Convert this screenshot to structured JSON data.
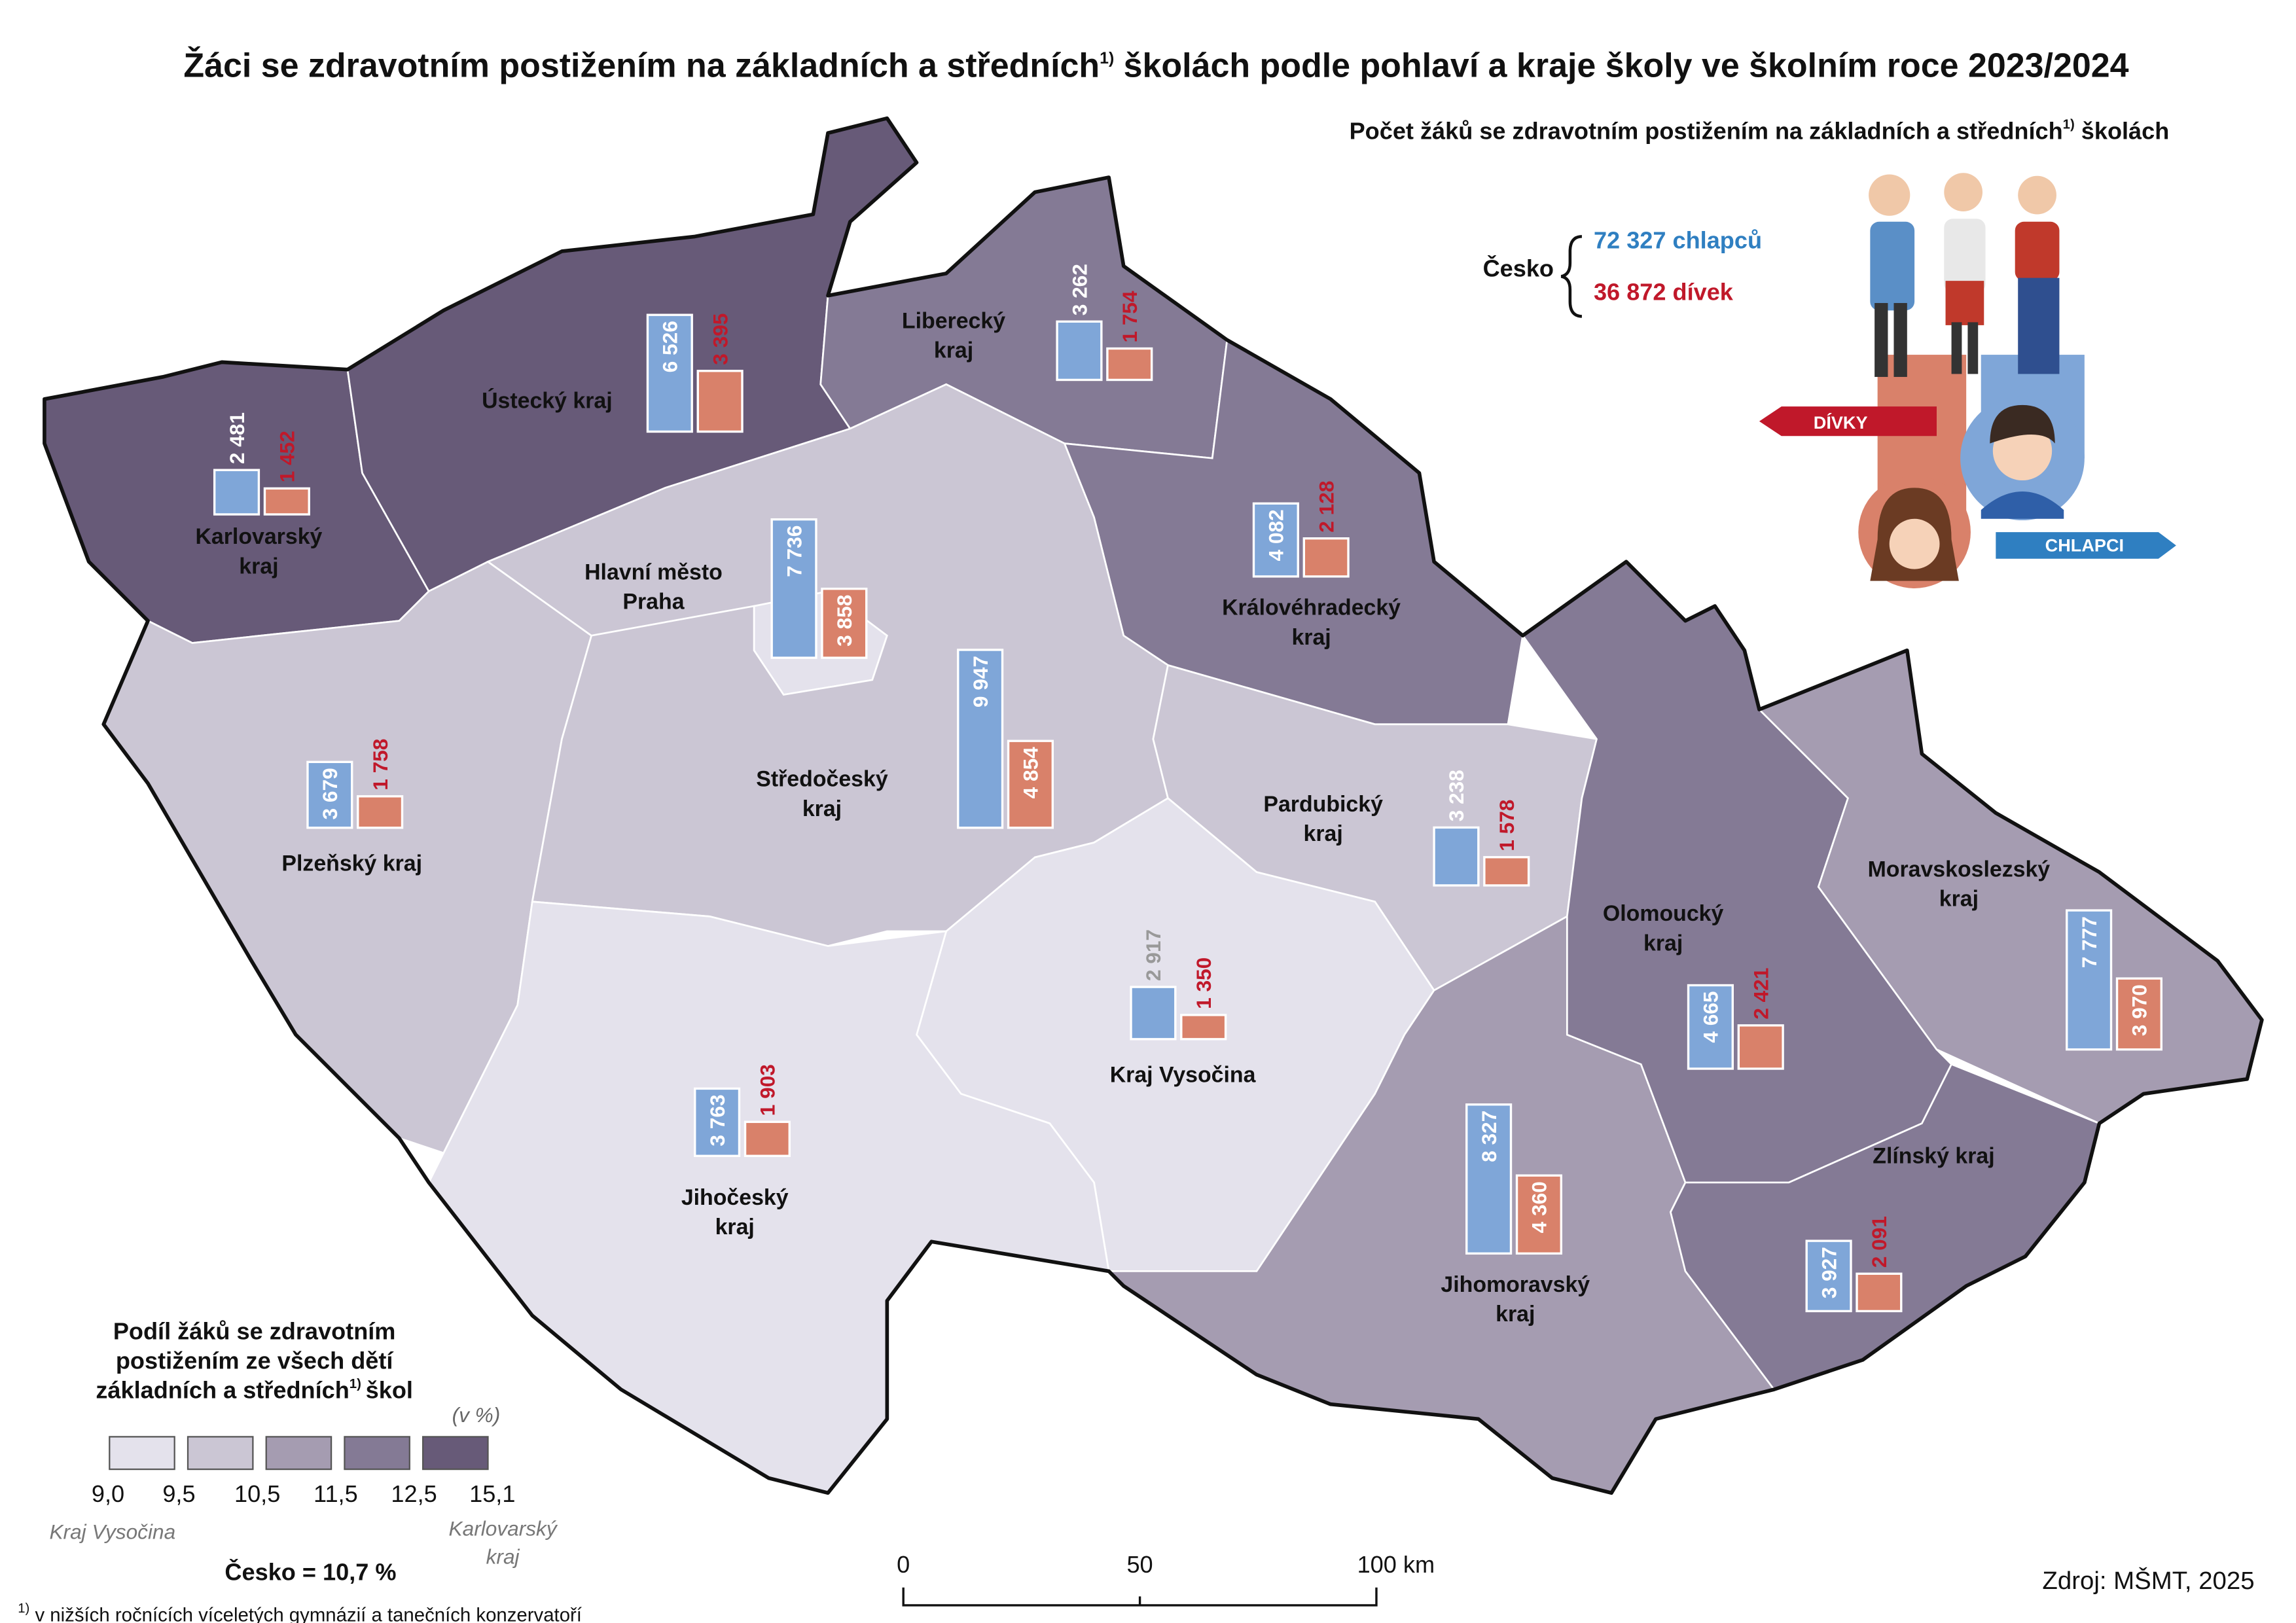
{
  "title": {
    "part1": "Žáci se zdravotním postižením na základních a středních",
    "sup": "1)",
    "part2": " školách podle pohlaví a kraje školy ve školním roce 2023/2024"
  },
  "infographic": {
    "title_part1": "Počet žáků se zdravotním postižením na základních a středních",
    "title_sup": "1)",
    "title_part2": " školách",
    "country": "Česko",
    "boys": {
      "value": 72327,
      "label": "72 327 chlapců",
      "color": "#2f7fc1"
    },
    "girls": {
      "value": 36872,
      "label": "36 872 dívek",
      "color": "#c0182a"
    },
    "girls_tag": "DÍVKY",
    "boys_tag": "CHLAPCI"
  },
  "bar_colors": {
    "boys": "#7fa6d8",
    "girls": "#d9816a",
    "girls_text": "#c0182a"
  },
  "regions": [
    {
      "name": [
        "Karlovarský",
        "kraj"
      ],
      "color": "#675a78",
      "boys": {
        "value": 2481,
        "label": "2 481"
      },
      "girls": {
        "value": 1452,
        "label": "1 452"
      }
    },
    {
      "name": [
        "Ústecký kraj"
      ],
      "color": "#675a78",
      "boys": {
        "value": 6526,
        "label": "6 526"
      },
      "girls": {
        "value": 3395,
        "label": "3 395"
      }
    },
    {
      "name": [
        "Liberecký",
        "kraj"
      ],
      "color": "#847a95",
      "boys": {
        "value": 3262,
        "label": "3 262"
      },
      "girls": {
        "value": 1754,
        "label": "1 754"
      }
    },
    {
      "name": [
        "Hlavní město",
        "Praha"
      ],
      "color": "#e4e2ec",
      "boys": {
        "value": 7736,
        "label": "7 736"
      },
      "girls": {
        "value": 3858,
        "label": "3 858"
      }
    },
    {
      "name": [
        "Královéhradecký",
        "kraj"
      ],
      "color": "#847a95",
      "boys": {
        "value": 4082,
        "label": "4 082"
      },
      "girls": {
        "value": 2128,
        "label": "2 128"
      }
    },
    {
      "name": [
        "Plzeňský kraj"
      ],
      "color": "#cbc6d4",
      "boys": {
        "value": 3679,
        "label": "3 679"
      },
      "girls": {
        "value": 1758,
        "label": "1 758"
      }
    },
    {
      "name": [
        "Středočeský",
        "kraj"
      ],
      "color": "#cbc6d4",
      "boys": {
        "value": 9947,
        "label": "9 947"
      },
      "girls": {
        "value": 4854,
        "label": "4 854"
      }
    },
    {
      "name": [
        "Pardubický",
        "kraj"
      ],
      "color": "#cbc6d4",
      "boys": {
        "value": 3238,
        "label": "3 238"
      },
      "girls": {
        "value": 1578,
        "label": "1 578"
      }
    },
    {
      "name": [
        "Kraj Vysočina"
      ],
      "color": "#e4e2ec",
      "boys": {
        "value": 2917,
        "label": "2 917"
      },
      "girls": {
        "value": 1350,
        "label": "1 350"
      }
    },
    {
      "name": [
        "Jihočeský",
        "kraj"
      ],
      "color": "#e4e2ec",
      "boys": {
        "value": 3763,
        "label": "3 763"
      },
      "girls": {
        "value": 1903,
        "label": "1 903"
      }
    },
    {
      "name": [
        "Jihomoravský",
        "kraj"
      ],
      "color": "#a59cb1",
      "boys": {
        "value": 8327,
        "label": "8 327"
      },
      "girls": {
        "value": 4360,
        "label": "4 360"
      }
    },
    {
      "name": [
        "Olomoucký",
        "kraj"
      ],
      "color": "#847a95",
      "boys": {
        "value": 4665,
        "label": "4 665"
      },
      "girls": {
        "value": 2421,
        "label": "2 421"
      }
    },
    {
      "name": [
        "Moravskoslezský",
        "kraj"
      ],
      "color": "#a59cb1",
      "boys": {
        "value": 7777,
        "label": "7 777"
      },
      "girls": {
        "value": 3970,
        "label": "3 970"
      }
    },
    {
      "name": [
        "Zlínský kraj"
      ],
      "color": "#847a95",
      "boys": {
        "value": 3927,
        "label": "3 927"
      },
      "girls": {
        "value": 2091,
        "label": "2 091"
      }
    }
  ],
  "legend": {
    "title_lines": [
      "Podíl žáků se zdravotním",
      "postižením ze všech dětí",
      "základních a středních"
    ],
    "title_sup": "1)",
    "title_end": "škol",
    "unit": "(v %)",
    "colors": [
      "#e4e2ec",
      "#cbc6d4",
      "#a59cb1",
      "#847a95",
      "#675a78"
    ],
    "breaks": [
      {
        "value": 9.0,
        "label": "9,0"
      },
      {
        "value": 9.5,
        "label": "9,5"
      },
      {
        "value": 10.5,
        "label": "10,5"
      },
      {
        "value": 11.5,
        "label": "11,5"
      },
      {
        "value": 12.5,
        "label": "12,5"
      },
      {
        "value": 15.1,
        "label": "15,1"
      }
    ],
    "min_region": "Kraj Vysočina",
    "max_region": [
      "Karlovarský",
      "kraj"
    ],
    "country_total": "Česko = 10,7 %"
  },
  "scale_bar": [
    "0",
    "50",
    "100 km"
  ],
  "source": "Zdroj: MŠMT, 2025",
  "footnote": {
    "sup": "1)",
    "text": " v nižších ročnících víceletých gymnázií a tanečních konzervatoří"
  }
}
